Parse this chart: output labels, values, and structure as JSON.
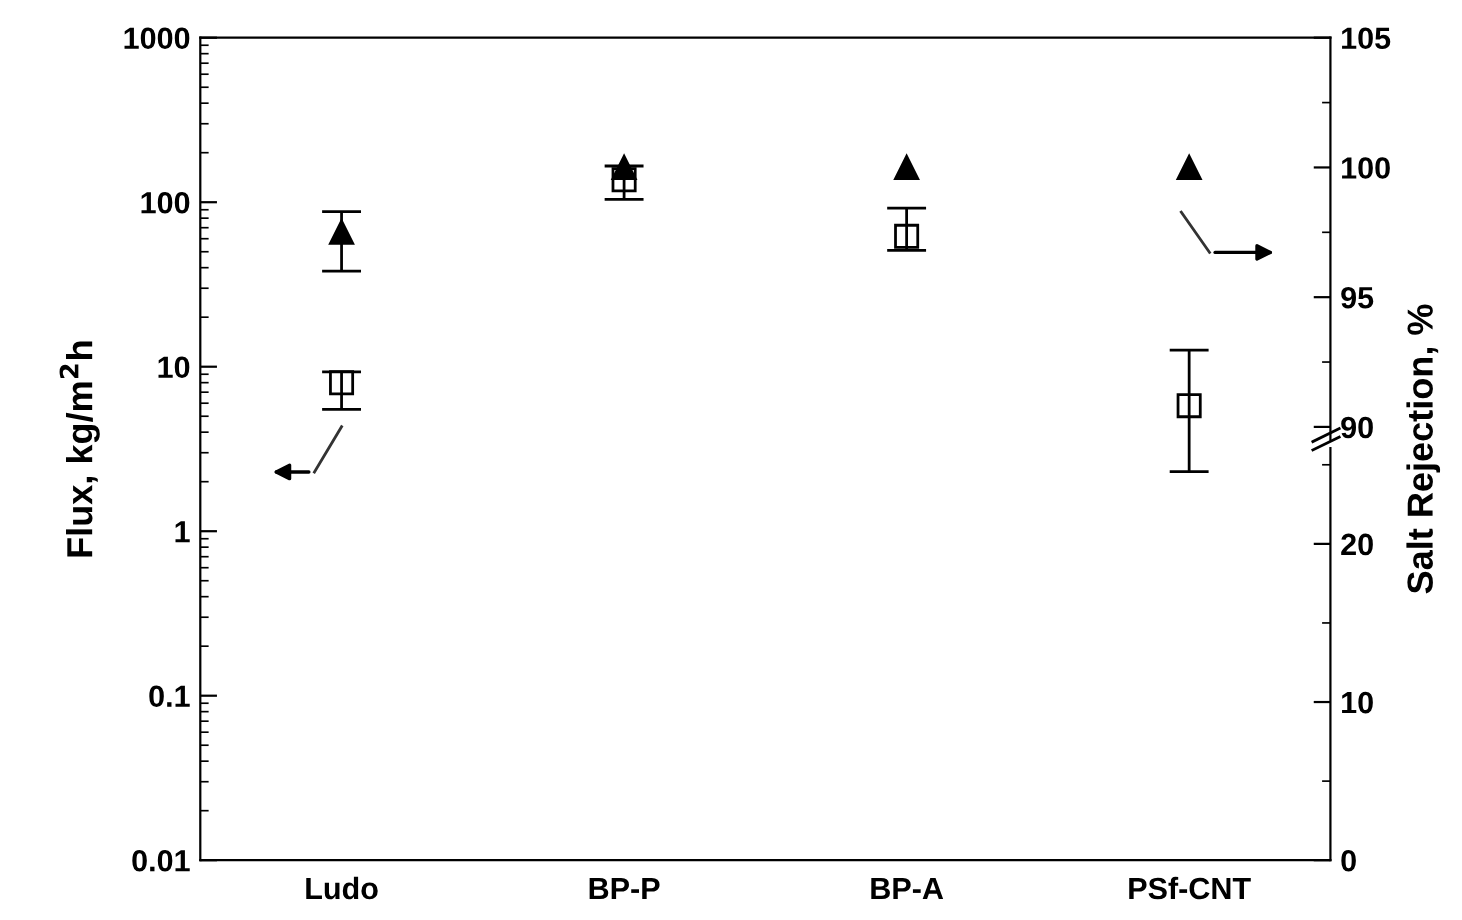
{
  "chart_data": {
    "type": "scatter",
    "categories": [
      "Ludo",
      "BP-P",
      "BP-A",
      "PSf-CNT"
    ],
    "ylabel": "Flux, kg/m$^{2}$h",
    "y2label": "Salt Rejection, %",
    "log": "y",
    "ylim": [
      0.01,
      1000
    ],
    "yticks": [
      0.01,
      0.1,
      1,
      10,
      100,
      1000
    ],
    "y2lim": [
      73.3,
      105
    ],
    "y2ticks": [
      90,
      95,
      100,
      105
    ],
    "y3lim": [
      0,
      52
    ],
    "y3ticks": [
      0,
      10,
      20
    ],
    "grid": false,
    "series": [
      {
        "marker": "square",
        "color": "#000000",
        "values": [
          8,
          137,
          62,
          5.8
        ],
        "errors": [
          [
            5.5,
            9.3
          ],
          [
            104,
            166
          ],
          [
            51,
            92
          ],
          [
            2.3,
            12.6
          ]
        ]
      },
      {
        "marker": "triangle",
        "axis": "y2",
        "color": "#000000",
        "values": [
          97.5,
          100,
          100,
          100
        ],
        "errors": [
          [
            96,
            98.3
          ],
          null,
          null,
          null
        ]
      }
    ]
  }
}
